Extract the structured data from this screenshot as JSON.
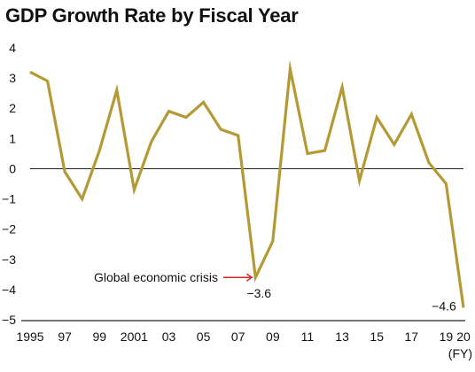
{
  "chart_data": {
    "type": "line",
    "title": "GDP Growth Rate by Fiscal Year",
    "xlabel": "",
    "ylabel": "",
    "x_unit_label": "(FY)",
    "grid": false,
    "ylim": [
      -5,
      4
    ],
    "yticks": [
      {
        "value": 4,
        "label": "4"
      },
      {
        "value": 3,
        "label": "3"
      },
      {
        "value": 2,
        "label": "2"
      },
      {
        "value": 1,
        "label": "1"
      },
      {
        "value": 0,
        "label": "0"
      },
      {
        "value": -1,
        "label": "−1"
      },
      {
        "value": -2,
        "label": "−2"
      },
      {
        "value": -3,
        "label": "−3"
      },
      {
        "value": -4,
        "label": "−4"
      },
      {
        "value": -5,
        "label": "−5"
      }
    ],
    "xticks": [
      {
        "year": 1995,
        "label": "1995"
      },
      {
        "year": 1997,
        "label": "97"
      },
      {
        "year": 1999,
        "label": "99"
      },
      {
        "year": 2001,
        "label": "2001"
      },
      {
        "year": 2003,
        "label": "03"
      },
      {
        "year": 2005,
        "label": "05"
      },
      {
        "year": 2007,
        "label": "07"
      },
      {
        "year": 2009,
        "label": "09"
      },
      {
        "year": 2011,
        "label": "11"
      },
      {
        "year": 2013,
        "label": "13"
      },
      {
        "year": 2015,
        "label": "15"
      },
      {
        "year": 2017,
        "label": "17"
      },
      {
        "year": 2019,
        "label": "19"
      },
      {
        "year": 2020,
        "label": "20"
      }
    ],
    "x": [
      1995,
      1996,
      1997,
      1998,
      1999,
      2000,
      2001,
      2002,
      2003,
      2004,
      2005,
      2006,
      2007,
      2008,
      2009,
      2010,
      2011,
      2012,
      2013,
      2014,
      2015,
      2016,
      2017,
      2018,
      2019,
      2020
    ],
    "series": [
      {
        "values": [
          3.2,
          2.9,
          -0.1,
          -1.0,
          0.6,
          2.6,
          -0.7,
          0.9,
          1.9,
          1.7,
          2.2,
          1.3,
          1.1,
          -3.6,
          -2.4,
          3.3,
          0.5,
          0.6,
          2.7,
          -0.4,
          1.7,
          0.8,
          1.8,
          0.2,
          -0.5,
          -4.6
        ]
      }
    ],
    "annotations": [
      {
        "text": "Global economic crisis",
        "year": 2008
      },
      {
        "text": "−3.6",
        "year": 2008,
        "value": -3.6
      },
      {
        "text": "−4.6",
        "year": 2020,
        "value": -4.6
      }
    ],
    "colors": {
      "line": "#b49a35",
      "axis": "#222222",
      "arrow": "#d9252a"
    }
  }
}
